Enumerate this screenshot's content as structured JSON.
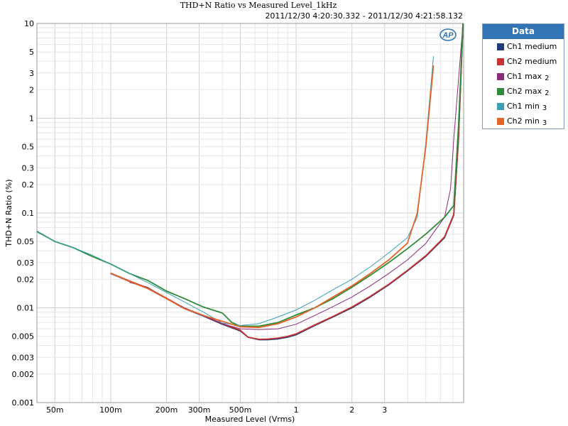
{
  "chart_data": {
    "type": "line",
    "title": "THD+N Ratio vs Measured Level_1kHz",
    "subtitle": "2011/12/30 4:20:30.332 - 2011/12/30 4:21:58.132",
    "xlabel": "Measured Level (Vrms)",
    "ylabel": "THD+N Ratio (%)",
    "x_scale": "log",
    "y_scale": "log",
    "xlim": [
      0.04,
      8
    ],
    "ylim": [
      0.001,
      10
    ],
    "x_ticks": [
      {
        "v": 0.05,
        "label": "50m"
      },
      {
        "v": 0.1,
        "label": "100m"
      },
      {
        "v": 0.2,
        "label": "200m"
      },
      {
        "v": 0.3,
        "label": "300m"
      },
      {
        "v": 0.5,
        "label": "500m"
      },
      {
        "v": 1,
        "label": "1"
      },
      {
        "v": 2,
        "label": "2"
      },
      {
        "v": 3,
        "label": "3"
      }
    ],
    "y_ticks": [
      {
        "v": 10,
        "label": "10"
      },
      {
        "v": 5,
        "label": "5"
      },
      {
        "v": 3,
        "label": "3"
      },
      {
        "v": 2,
        "label": "2"
      },
      {
        "v": 1,
        "label": "1"
      },
      {
        "v": 0.5,
        "label": "0.5"
      },
      {
        "v": 0.3,
        "label": "0.3"
      },
      {
        "v": 0.2,
        "label": "0.2"
      },
      {
        "v": 0.1,
        "label": "0.1"
      },
      {
        "v": 0.05,
        "label": "0.05"
      },
      {
        "v": 0.03,
        "label": "0.03"
      },
      {
        "v": 0.02,
        "label": "0.02"
      },
      {
        "v": 0.01,
        "label": "0.01"
      },
      {
        "v": 0.005,
        "label": "0.005"
      },
      {
        "v": 0.003,
        "label": "0.003"
      },
      {
        "v": 0.002,
        "label": "0.002"
      },
      {
        "v": 0.001,
        "label": "0.001"
      }
    ],
    "grid": true,
    "legend": {
      "title": "Data",
      "position": "right"
    },
    "series": [
      {
        "name": "Ch1 medium",
        "legend_sub": "",
        "color": "#1f3a78",
        "x": [
          0.1,
          0.126,
          0.158,
          0.2,
          0.25,
          0.316,
          0.4,
          0.5,
          0.55,
          0.63,
          0.7,
          0.8,
          0.9,
          1.0,
          1.26,
          1.58,
          2.0,
          2.51,
          3.16,
          3.98,
          5.01,
          6.31,
          7.08,
          7.5,
          7.94
        ],
        "y": [
          0.023,
          0.019,
          0.016,
          0.0125,
          0.0098,
          0.0082,
          0.0067,
          0.0057,
          0.0049,
          0.0046,
          0.0046,
          0.0047,
          0.0049,
          0.0052,
          0.0065,
          0.008,
          0.01,
          0.013,
          0.0175,
          0.0245,
          0.035,
          0.055,
          0.095,
          0.6,
          10
        ]
      },
      {
        "name": "Ch2 medium",
        "legend_sub": "",
        "color": "#c83232",
        "x": [
          0.1,
          0.126,
          0.158,
          0.2,
          0.25,
          0.316,
          0.4,
          0.5,
          0.55,
          0.63,
          0.7,
          0.8,
          0.9,
          1.0,
          1.26,
          1.58,
          2.0,
          2.51,
          3.16,
          3.98,
          5.01,
          6.31,
          7.08,
          7.5,
          7.94
        ],
        "y": [
          0.0232,
          0.0192,
          0.0162,
          0.0126,
          0.0099,
          0.0083,
          0.0068,
          0.0058,
          0.0049,
          0.00465,
          0.00468,
          0.0048,
          0.005,
          0.0053,
          0.0066,
          0.0081,
          0.0102,
          0.0132,
          0.0177,
          0.0248,
          0.0355,
          0.056,
          0.097,
          0.6,
          10
        ]
      },
      {
        "name": "Ch1 max",
        "legend_sub": "2",
        "color": "#8c2a7a",
        "x": [
          0.126,
          0.158,
          0.2,
          0.25,
          0.316,
          0.4,
          0.5,
          0.63,
          0.8,
          1.0,
          1.26,
          1.58,
          2.0,
          2.51,
          3.16,
          3.98,
          5.01,
          6.31,
          6.8,
          7.08,
          7.94
        ],
        "y": [
          0.0185,
          0.0165,
          0.0125,
          0.01,
          0.0082,
          0.0068,
          0.006,
          0.0059,
          0.006,
          0.0067,
          0.0083,
          0.0103,
          0.013,
          0.017,
          0.023,
          0.032,
          0.048,
          0.09,
          0.18,
          0.6,
          10
        ]
      },
      {
        "name": "Ch2 max",
        "legend_sub": "2",
        "color": "#2e8b3a",
        "x": [
          0.04,
          0.05,
          0.063,
          0.079,
          0.1,
          0.126,
          0.158,
          0.2,
          0.25,
          0.316,
          0.4,
          0.45,
          0.5,
          0.63,
          0.8,
          1.0,
          1.26,
          1.58,
          2.0,
          2.51,
          3.16,
          3.98,
          5.01,
          6.31,
          7.08,
          7.5,
          7.94
        ],
        "y": [
          0.064,
          0.05,
          0.043,
          0.035,
          0.029,
          0.023,
          0.0195,
          0.015,
          0.0125,
          0.0102,
          0.0088,
          0.007,
          0.0064,
          0.0064,
          0.007,
          0.0084,
          0.01,
          0.0125,
          0.0165,
          0.022,
          0.03,
          0.042,
          0.06,
          0.09,
          0.12,
          0.8,
          10
        ]
      },
      {
        "name": "Ch1 min",
        "legend_sub": "3",
        "color": "#3aa0b4",
        "x": [
          0.04,
          0.05,
          0.063,
          0.079,
          0.1,
          0.126,
          0.158,
          0.2,
          0.25,
          0.316,
          0.4,
          0.5,
          0.63,
          0.8,
          1.0,
          1.26,
          1.58,
          2.0,
          2.51,
          3.16,
          3.98,
          4.5,
          5.0,
          5.5
        ],
        "y": [
          0.063,
          0.05,
          0.043,
          0.036,
          0.029,
          0.023,
          0.0185,
          0.0145,
          0.0115,
          0.009,
          0.0069,
          0.0065,
          0.0068,
          0.008,
          0.0095,
          0.012,
          0.0155,
          0.02,
          0.027,
          0.038,
          0.055,
          0.09,
          0.55,
          4.5
        ]
      },
      {
        "name": "Ch2 min",
        "legend_sub": "3",
        "color": "#e2652a",
        "x": [
          0.1,
          0.126,
          0.158,
          0.2,
          0.25,
          0.316,
          0.4,
          0.5,
          0.63,
          0.8,
          1.0,
          1.26,
          1.58,
          2.0,
          2.51,
          3.16,
          3.98,
          4.5,
          5.0,
          5.5
        ],
        "y": [
          0.0232,
          0.019,
          0.016,
          0.0125,
          0.0098,
          0.0083,
          0.0072,
          0.0063,
          0.0062,
          0.0068,
          0.008,
          0.01,
          0.013,
          0.017,
          0.023,
          0.032,
          0.048,
          0.1,
          0.5,
          3.6
        ]
      }
    ]
  }
}
